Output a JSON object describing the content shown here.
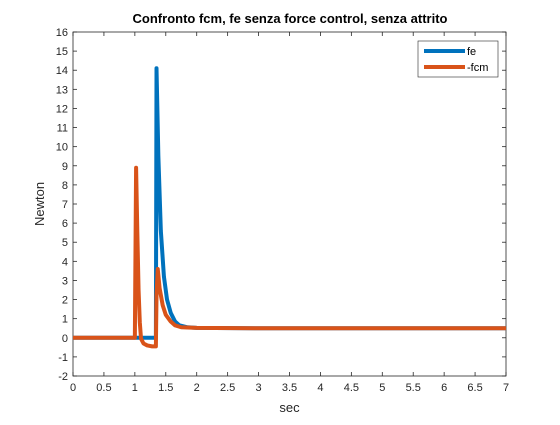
{
  "chart_data": {
    "type": "line",
    "title": "Confronto fcm, fe senza force control, senza attrito",
    "xlabel": "sec",
    "ylabel": "Newton",
    "xlim": [
      0,
      7
    ],
    "ylim": [
      -2,
      16
    ],
    "xticks": [
      0,
      0.5,
      1,
      1.5,
      2,
      2.5,
      3,
      3.5,
      4,
      4.5,
      5,
      5.5,
      6,
      6.5,
      7
    ],
    "yticks": [
      -2,
      -1,
      0,
      1,
      2,
      3,
      4,
      5,
      6,
      7,
      8,
      9,
      10,
      11,
      12,
      13,
      14,
      15,
      16
    ],
    "xtick_labels": [
      "0",
      "0.5",
      "1",
      "1.5",
      "2",
      "2.5",
      "3",
      "3.5",
      "4",
      "4.5",
      "5",
      "5.5",
      "6",
      "6.5",
      "7"
    ],
    "ytick_labels": [
      "-2",
      "-1",
      "0",
      "1",
      "2",
      "3",
      "4",
      "5",
      "6",
      "7",
      "8",
      "9",
      "10",
      "11",
      "12",
      "13",
      "14",
      "15",
      "16"
    ],
    "grid": false,
    "legend_position": "top-right",
    "series": [
      {
        "name": "fe",
        "color": "#0072BD",
        "points": [
          [
            0,
            0
          ],
          [
            1.0,
            0
          ],
          [
            1.02,
            0
          ],
          [
            1.1,
            0
          ],
          [
            1.2,
            0
          ],
          [
            1.3,
            0
          ],
          [
            1.34,
            0
          ],
          [
            1.35,
            14.1
          ],
          [
            1.38,
            9.5
          ],
          [
            1.42,
            5.6
          ],
          [
            1.47,
            3.2
          ],
          [
            1.52,
            2.0
          ],
          [
            1.58,
            1.3
          ],
          [
            1.65,
            0.85
          ],
          [
            1.72,
            0.65
          ],
          [
            1.85,
            0.55
          ],
          [
            2.0,
            0.52
          ],
          [
            3.0,
            0.5
          ],
          [
            4.0,
            0.5
          ],
          [
            5.0,
            0.5
          ],
          [
            6.0,
            0.5
          ],
          [
            7.0,
            0.5
          ]
        ]
      },
      {
        "name": "-fcm",
        "color": "#D95319",
        "points": [
          [
            0,
            0
          ],
          [
            0.99,
            0
          ],
          [
            1.0,
            0
          ],
          [
            1.02,
            8.9
          ],
          [
            1.04,
            5.5
          ],
          [
            1.06,
            2.5
          ],
          [
            1.08,
            0.8
          ],
          [
            1.1,
            -0.05
          ],
          [
            1.14,
            -0.3
          ],
          [
            1.2,
            -0.4
          ],
          [
            1.28,
            -0.45
          ],
          [
            1.34,
            -0.45
          ],
          [
            1.35,
            2.2
          ],
          [
            1.37,
            3.6
          ],
          [
            1.4,
            2.6
          ],
          [
            1.45,
            1.7
          ],
          [
            1.5,
            1.2
          ],
          [
            1.58,
            0.85
          ],
          [
            1.65,
            0.65
          ],
          [
            1.75,
            0.55
          ],
          [
            2.0,
            0.52
          ],
          [
            3.0,
            0.5
          ],
          [
            4.0,
            0.5
          ],
          [
            5.0,
            0.5
          ],
          [
            6.0,
            0.5
          ],
          [
            7.0,
            0.5
          ]
        ]
      }
    ]
  }
}
